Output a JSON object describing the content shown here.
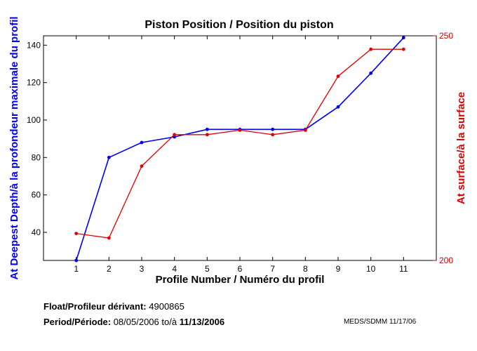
{
  "chart_data": {
    "type": "line",
    "title": "Piston Position / Position du piston",
    "xlabel": "Profile Number / Numéro du profil",
    "ylabel_left": "At Deepest Depth/à la profondeur maximale du profil",
    "ylabel_right": "At surface/à la surface",
    "x": [
      1,
      2,
      3,
      4,
      5,
      6,
      7,
      8,
      9,
      10,
      11
    ],
    "xlim": [
      0,
      12
    ],
    "xticks": [
      "1",
      "2",
      "3",
      "4",
      "5",
      "6",
      "7",
      "8",
      "9",
      "10",
      "11"
    ],
    "ylim_left": [
      25,
      145
    ],
    "yticks_left": [
      "40",
      "60",
      "80",
      "100",
      "120",
      "140"
    ],
    "ylim_right": [
      200,
      250
    ],
    "yticks_right": [
      "200",
      "250"
    ],
    "grid": false,
    "series": [
      {
        "axis": "left",
        "color": "#0000ee",
        "values": [
          25,
          80,
          88,
          91,
          95,
          95,
          95,
          95,
          107,
          125,
          144
        ]
      },
      {
        "axis": "right",
        "color": "#dd0000",
        "values": [
          206,
          205,
          221,
          228,
          228,
          229,
          228,
          229,
          241,
          247,
          247
        ]
      }
    ]
  },
  "footer": {
    "float_label": "Float/Profileur dérivant:",
    "float_id": "4900865",
    "period_label": "Period/Période:",
    "period_start": "08/05/2006",
    "period_sep": "to/à",
    "period_end": "11/13/2006",
    "stamp": "MEDS/SDMM  11/17/06"
  }
}
